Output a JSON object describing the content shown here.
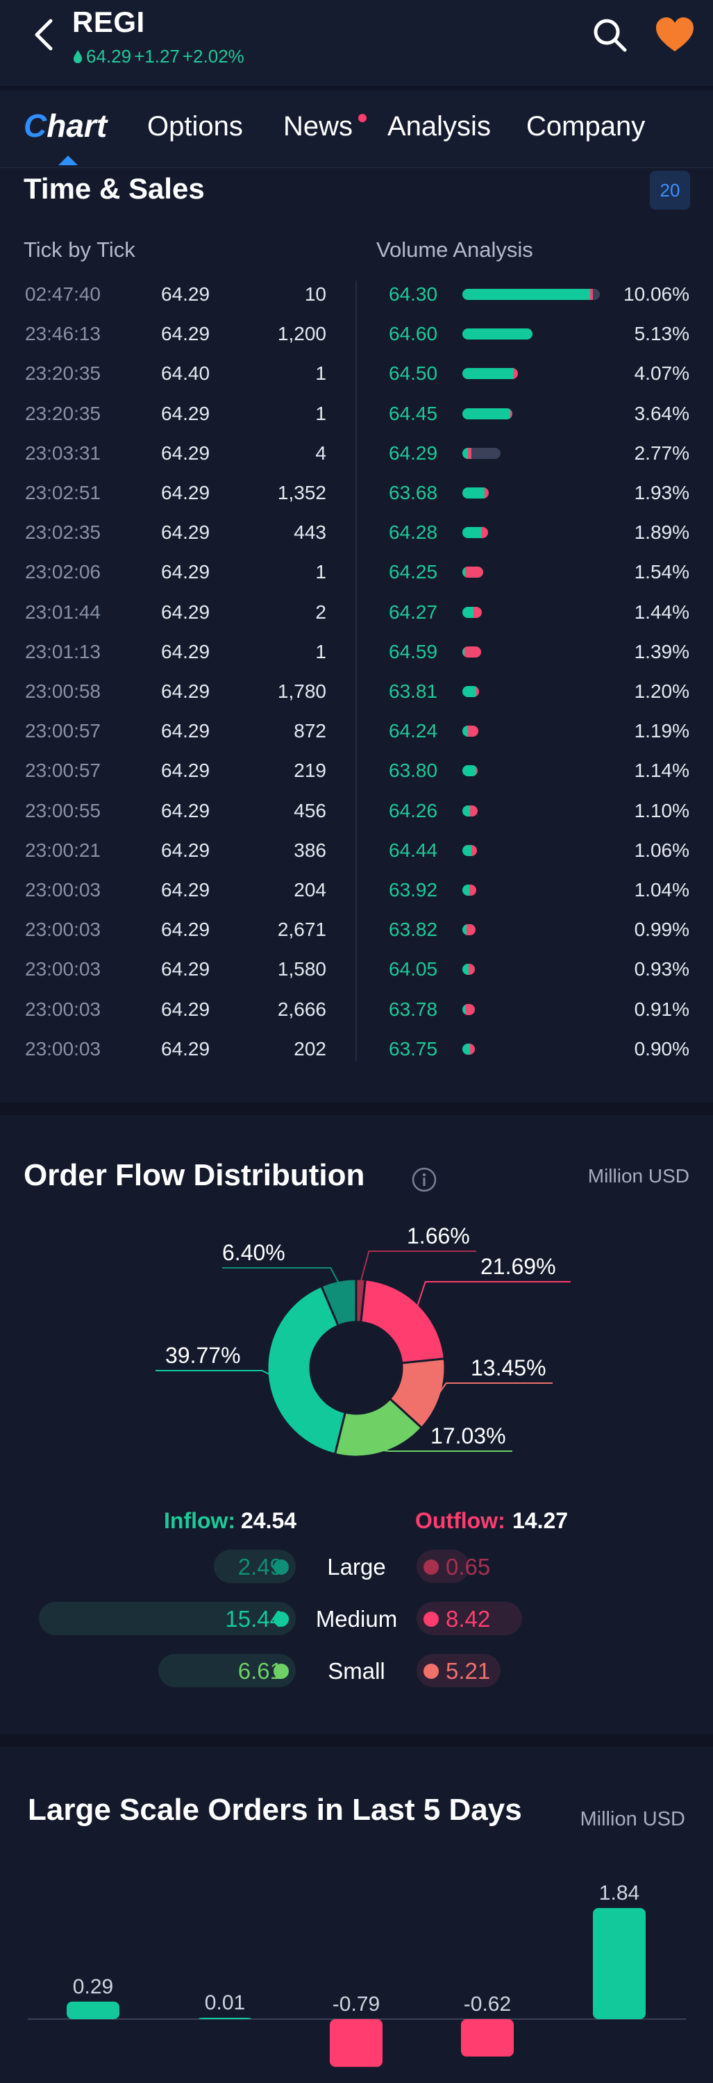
{
  "header": {
    "ticker": "REGI",
    "price": "64.29",
    "change": "+1.27",
    "change_pct": "+2.02%",
    "colors": {
      "up": "#1ec997",
      "heart": "#f47c2c",
      "accent": "#2f8fff"
    }
  },
  "tabs": [
    {
      "label": "Chart",
      "active": true
    },
    {
      "label": "Options"
    },
    {
      "label": "News",
      "has_dot": true
    },
    {
      "label": "Analysis"
    },
    {
      "label": "Company"
    }
  ],
  "time_sales": {
    "title": "Time & Sales",
    "badge": "20",
    "tick_header": "Tick by Tick",
    "volume_header": "Volume Analysis",
    "ticks": [
      {
        "time": "02:47:40",
        "price": "64.29",
        "volume": "10"
      },
      {
        "time": "23:46:13",
        "price": "64.29",
        "volume": "1,200"
      },
      {
        "time": "23:20:35",
        "price": "64.40",
        "volume": "1"
      },
      {
        "time": "23:20:35",
        "price": "64.29",
        "volume": "1"
      },
      {
        "time": "23:03:31",
        "price": "64.29",
        "volume": "4"
      },
      {
        "time": "23:02:51",
        "price": "64.29",
        "volume": "1,352"
      },
      {
        "time": "23:02:35",
        "price": "64.29",
        "volume": "443"
      },
      {
        "time": "23:02:06",
        "price": "64.29",
        "volume": "1"
      },
      {
        "time": "23:01:44",
        "price": "64.29",
        "volume": "2"
      },
      {
        "time": "23:01:13",
        "price": "64.29",
        "volume": "1"
      },
      {
        "time": "23:00:58",
        "price": "64.29",
        "volume": "1,780"
      },
      {
        "time": "23:00:57",
        "price": "64.29",
        "volume": "872"
      },
      {
        "time": "23:00:57",
        "price": "64.29",
        "volume": "219"
      },
      {
        "time": "23:00:55",
        "price": "64.29",
        "volume": "456"
      },
      {
        "time": "23:00:21",
        "price": "64.29",
        "volume": "386"
      },
      {
        "time": "23:00:03",
        "price": "64.29",
        "volume": "204"
      },
      {
        "time": "23:00:03",
        "price": "64.29",
        "volume": "2,671"
      },
      {
        "time": "23:00:03",
        "price": "64.29",
        "volume": "1,580"
      },
      {
        "time": "23:00:03",
        "price": "64.29",
        "volume": "2,666"
      },
      {
        "time": "23:00:03",
        "price": "64.29",
        "volume": "202"
      }
    ],
    "volume": [
      {
        "price": "64.30",
        "pct": "10.06%",
        "share": 10.06,
        "buy": 0.93,
        "sell": 0.02
      },
      {
        "price": "64.60",
        "pct": "5.13%",
        "share": 5.13,
        "buy": 1.0,
        "sell": 0.0
      },
      {
        "price": "64.50",
        "pct": "4.07%",
        "share": 4.07,
        "buy": 0.92,
        "sell": 0.08
      },
      {
        "price": "64.45",
        "pct": "3.64%",
        "share": 3.64,
        "buy": 0.97,
        "sell": 0.03
      },
      {
        "price": "64.29",
        "pct": "2.77%",
        "share": 2.77,
        "buy": 0.14,
        "sell": 0.1
      },
      {
        "price": "63.68",
        "pct": "1.93%",
        "share": 1.93,
        "buy": 0.85,
        "sell": 0.15
      },
      {
        "price": "64.28",
        "pct": "1.89%",
        "share": 1.89,
        "buy": 0.75,
        "sell": 0.25
      },
      {
        "price": "64.25",
        "pct": "1.54%",
        "share": 1.54,
        "buy": 0.12,
        "sell": 0.88
      },
      {
        "price": "64.27",
        "pct": "1.44%",
        "share": 1.44,
        "buy": 0.55,
        "sell": 0.45
      },
      {
        "price": "64.59",
        "pct": "1.39%",
        "share": 1.39,
        "buy": 0.1,
        "sell": 0.9
      },
      {
        "price": "63.81",
        "pct": "1.20%",
        "share": 1.2,
        "buy": 0.85,
        "sell": 0.15
      },
      {
        "price": "64.24",
        "pct": "1.19%",
        "share": 1.19,
        "buy": 0.35,
        "sell": 0.65
      },
      {
        "price": "63.80",
        "pct": "1.14%",
        "share": 1.14,
        "buy": 0.9,
        "sell": 0.1
      },
      {
        "price": "64.26",
        "pct": "1.10%",
        "share": 1.1,
        "buy": 0.5,
        "sell": 0.5
      },
      {
        "price": "64.44",
        "pct": "1.06%",
        "share": 1.06,
        "buy": 0.6,
        "sell": 0.4
      },
      {
        "price": "63.92",
        "pct": "1.04%",
        "share": 1.04,
        "buy": 0.5,
        "sell": 0.5
      },
      {
        "price": "63.82",
        "pct": "0.99%",
        "share": 0.99,
        "buy": 0.3,
        "sell": 0.7
      },
      {
        "price": "64.05",
        "pct": "0.93%",
        "share": 0.93,
        "buy": 0.5,
        "sell": 0.5
      },
      {
        "price": "63.78",
        "pct": "0.91%",
        "share": 0.91,
        "buy": 0.3,
        "sell": 0.7
      },
      {
        "price": "63.75",
        "pct": "0.90%",
        "share": 0.9,
        "buy": 0.6,
        "sell": 0.4
      }
    ]
  },
  "order_flow": {
    "title": "Order Flow Distribution",
    "unit": "Million USD",
    "inflow_label": "Inflow:",
    "inflow_value": "24.54",
    "outflow_label": "Outflow:",
    "outflow_value": "14.27",
    "rows": [
      {
        "label": "Large",
        "in": "2.49",
        "out": "0.65",
        "in_num": 2.49,
        "out_num": 0.65,
        "in_color": "#0f8f78",
        "out_color": "#a8304f"
      },
      {
        "label": "Medium",
        "in": "15.44",
        "out": "8.42",
        "in_num": 15.44,
        "out_num": 8.42,
        "in_color": "#12c99b",
        "out_color": "#ff3d6e"
      },
      {
        "label": "Small",
        "in": "6.61",
        "out": "5.21",
        "in_num": 6.61,
        "out_num": 5.21,
        "in_color": "#6fd066",
        "out_color": "#f0716c"
      }
    ]
  },
  "chart_data": [
    {
      "type": "pie",
      "slices": [
        {
          "label": "1.66%",
          "value": 1.66,
          "color": "#a8304f"
        },
        {
          "label": "21.69%",
          "value": 21.69,
          "color": "#ff3d6e"
        },
        {
          "label": "13.45%",
          "value": 13.45,
          "color": "#f0716c"
        },
        {
          "label": "17.03%",
          "value": 17.03,
          "color": "#6fd066"
        },
        {
          "label": "39.77%",
          "value": 39.77,
          "color": "#12c99b"
        },
        {
          "label": "6.40%",
          "value": 6.4,
          "color": "#0f8f78"
        }
      ]
    },
    {
      "type": "bar",
      "title": "Large Scale Orders in Last 5 Days",
      "unit": "Million USD",
      "values": [
        0.29,
        0.01,
        -0.79,
        -0.62,
        1.84
      ],
      "labels": [
        "0.29",
        "0.01",
        "-0.79",
        "-0.62",
        "1.84"
      ],
      "colors": {
        "positive": "#12c99b",
        "negative": "#ff3d6e"
      }
    }
  ]
}
